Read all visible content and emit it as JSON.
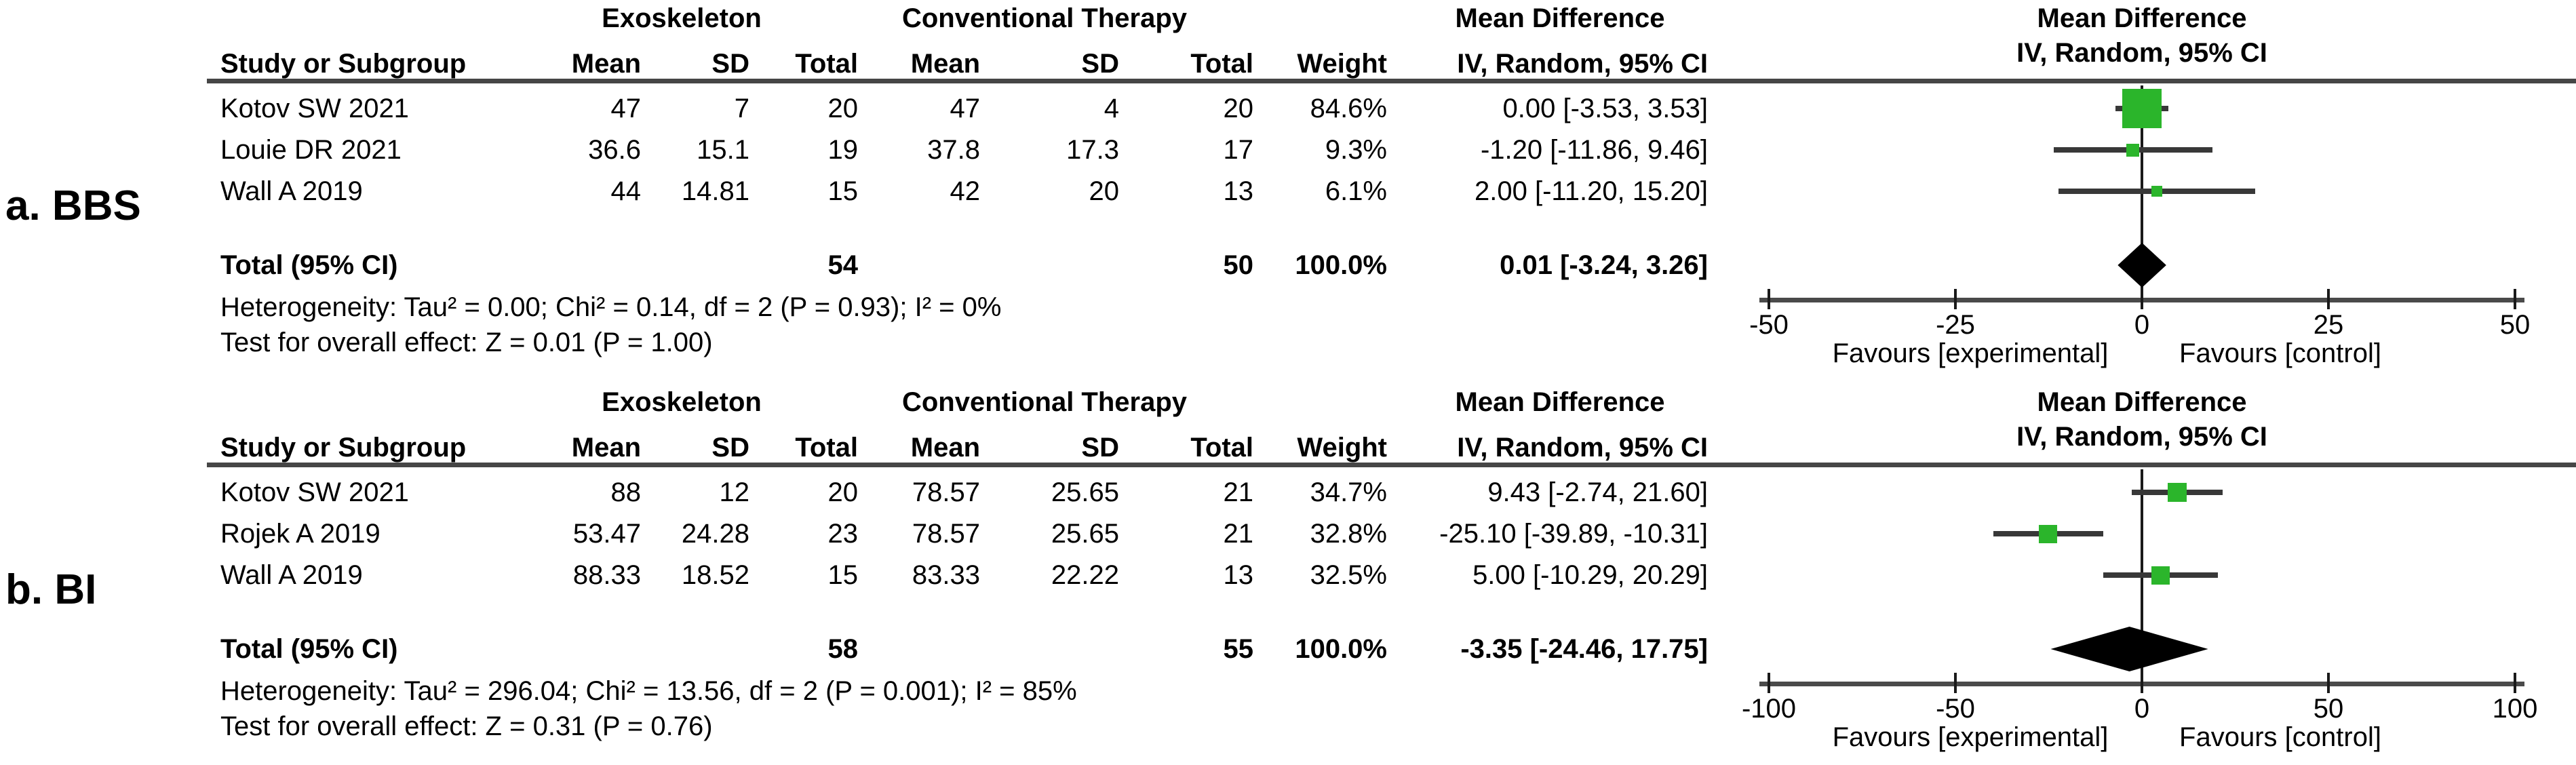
{
  "chart_data": {
    "type": "forest",
    "colors": {
      "marker_green": "#2bb52b",
      "diamond_black": "#000000",
      "ci_line_gray": "#383838",
      "axis_gray": "#4a4a4a"
    },
    "panels": [
      {
        "label": "a. BBS",
        "group_headers": {
          "experimental": "Exoskeleton",
          "control": "Conventional Therapy",
          "effect": "Mean Difference"
        },
        "column_headers": {
          "study": "Study or Subgroup",
          "exp_mean": "Mean",
          "exp_sd": "SD",
          "exp_total": "Total",
          "ctl_mean": "Mean",
          "ctl_sd": "SD",
          "ctl_total": "Total",
          "weight": "Weight",
          "ci": "IV, Random, 95% CI"
        },
        "plot_header": {
          "line1": "Mean Difference",
          "line2": "IV, Random, 95% CI"
        },
        "studies": [
          {
            "name": "Kotov SW 2021",
            "exp_mean": "47",
            "exp_sd": "7",
            "exp_total": "20",
            "ctl_mean": "47",
            "ctl_sd": "4",
            "ctl_total": "20",
            "weight": "84.6%",
            "ci_text": "0.00 [-3.53, 3.53]",
            "md": 0.0,
            "ci_low": -3.53,
            "ci_high": 3.53,
            "weight_pct": 84.6
          },
          {
            "name": "Louie DR 2021",
            "exp_mean": "36.6",
            "exp_sd": "15.1",
            "exp_total": "19",
            "ctl_mean": "37.8",
            "ctl_sd": "17.3",
            "ctl_total": "17",
            "weight": "9.3%",
            "ci_text": "-1.20 [-11.86, 9.46]",
            "md": -1.2,
            "ci_low": -11.86,
            "ci_high": 9.46,
            "weight_pct": 9.3
          },
          {
            "name": "Wall A 2019",
            "exp_mean": "44",
            "exp_sd": "14.81",
            "exp_total": "15",
            "ctl_mean": "42",
            "ctl_sd": "20",
            "ctl_total": "13",
            "weight": "6.1%",
            "ci_text": "2.00 [-11.20, 15.20]",
            "md": 2.0,
            "ci_low": -11.2,
            "ci_high": 15.2,
            "weight_pct": 6.1
          }
        ],
        "total": {
          "label": "Total (95% CI)",
          "exp_total": "54",
          "ctl_total": "50",
          "weight": "100.0%",
          "ci_text": "0.01 [-3.24, 3.26]",
          "md": 0.01,
          "ci_low": -3.24,
          "ci_high": 3.26
        },
        "heterogeneity": "Heterogeneity: Tau² = 0.00; Chi² = 0.14, df = 2 (P = 0.93); I² = 0%",
        "overall_effect": "Test for overall effect: Z = 0.01 (P = 1.00)",
        "axis": {
          "min": -50,
          "max": 50,
          "ticks": [
            -50,
            -25,
            0,
            25,
            50
          ]
        },
        "footer": {
          "left": "Favours [experimental]",
          "right": "Favours [control]"
        }
      },
      {
        "label": "b. BI",
        "group_headers": {
          "experimental": "Exoskeleton",
          "control": "Conventional Therapy",
          "effect": "Mean Difference"
        },
        "column_headers": {
          "study": "Study or Subgroup",
          "exp_mean": "Mean",
          "exp_sd": "SD",
          "exp_total": "Total",
          "ctl_mean": "Mean",
          "ctl_sd": "SD",
          "ctl_total": "Total",
          "weight": "Weight",
          "ci": "IV, Random, 95% CI"
        },
        "plot_header": {
          "line1": "Mean Difference",
          "line2": "IV, Random, 95% CI"
        },
        "studies": [
          {
            "name": "Kotov SW 2021",
            "exp_mean": "88",
            "exp_sd": "12",
            "exp_total": "20",
            "ctl_mean": "78.57",
            "ctl_sd": "25.65",
            "ctl_total": "21",
            "weight": "34.7%",
            "ci_text": "9.43 [-2.74, 21.60]",
            "md": 9.43,
            "ci_low": -2.74,
            "ci_high": 21.6,
            "weight_pct": 34.7
          },
          {
            "name": "Rojek A 2019",
            "exp_mean": "53.47",
            "exp_sd": "24.28",
            "exp_total": "23",
            "ctl_mean": "78.57",
            "ctl_sd": "25.65",
            "ctl_total": "21",
            "weight": "32.8%",
            "ci_text": "-25.10 [-39.89, -10.31]",
            "md": -25.1,
            "ci_low": -39.89,
            "ci_high": -10.31,
            "weight_pct": 32.8
          },
          {
            "name": "Wall A 2019",
            "exp_mean": "88.33",
            "exp_sd": "18.52",
            "exp_total": "15",
            "ctl_mean": "83.33",
            "ctl_sd": "22.22",
            "ctl_total": "13",
            "weight": "32.5%",
            "ci_text": "5.00 [-10.29, 20.29]",
            "md": 5.0,
            "ci_low": -10.29,
            "ci_high": 20.29,
            "weight_pct": 32.5
          }
        ],
        "total": {
          "label": "Total (95% CI)",
          "exp_total": "58",
          "ctl_total": "55",
          "weight": "100.0%",
          "ci_text": "-3.35 [-24.46, 17.75]",
          "md": -3.35,
          "ci_low": -24.46,
          "ci_high": 17.75
        },
        "heterogeneity": "Heterogeneity: Tau² = 296.04; Chi² = 13.56, df = 2 (P = 0.001); I² = 85%",
        "overall_effect": "Test for overall effect: Z = 0.31 (P = 0.76)",
        "axis": {
          "min": -100,
          "max": 100,
          "ticks": [
            -100,
            -50,
            0,
            50,
            100
          ]
        },
        "footer": {
          "left": "Favours [experimental]",
          "right": "Favours [control]"
        }
      }
    ]
  }
}
